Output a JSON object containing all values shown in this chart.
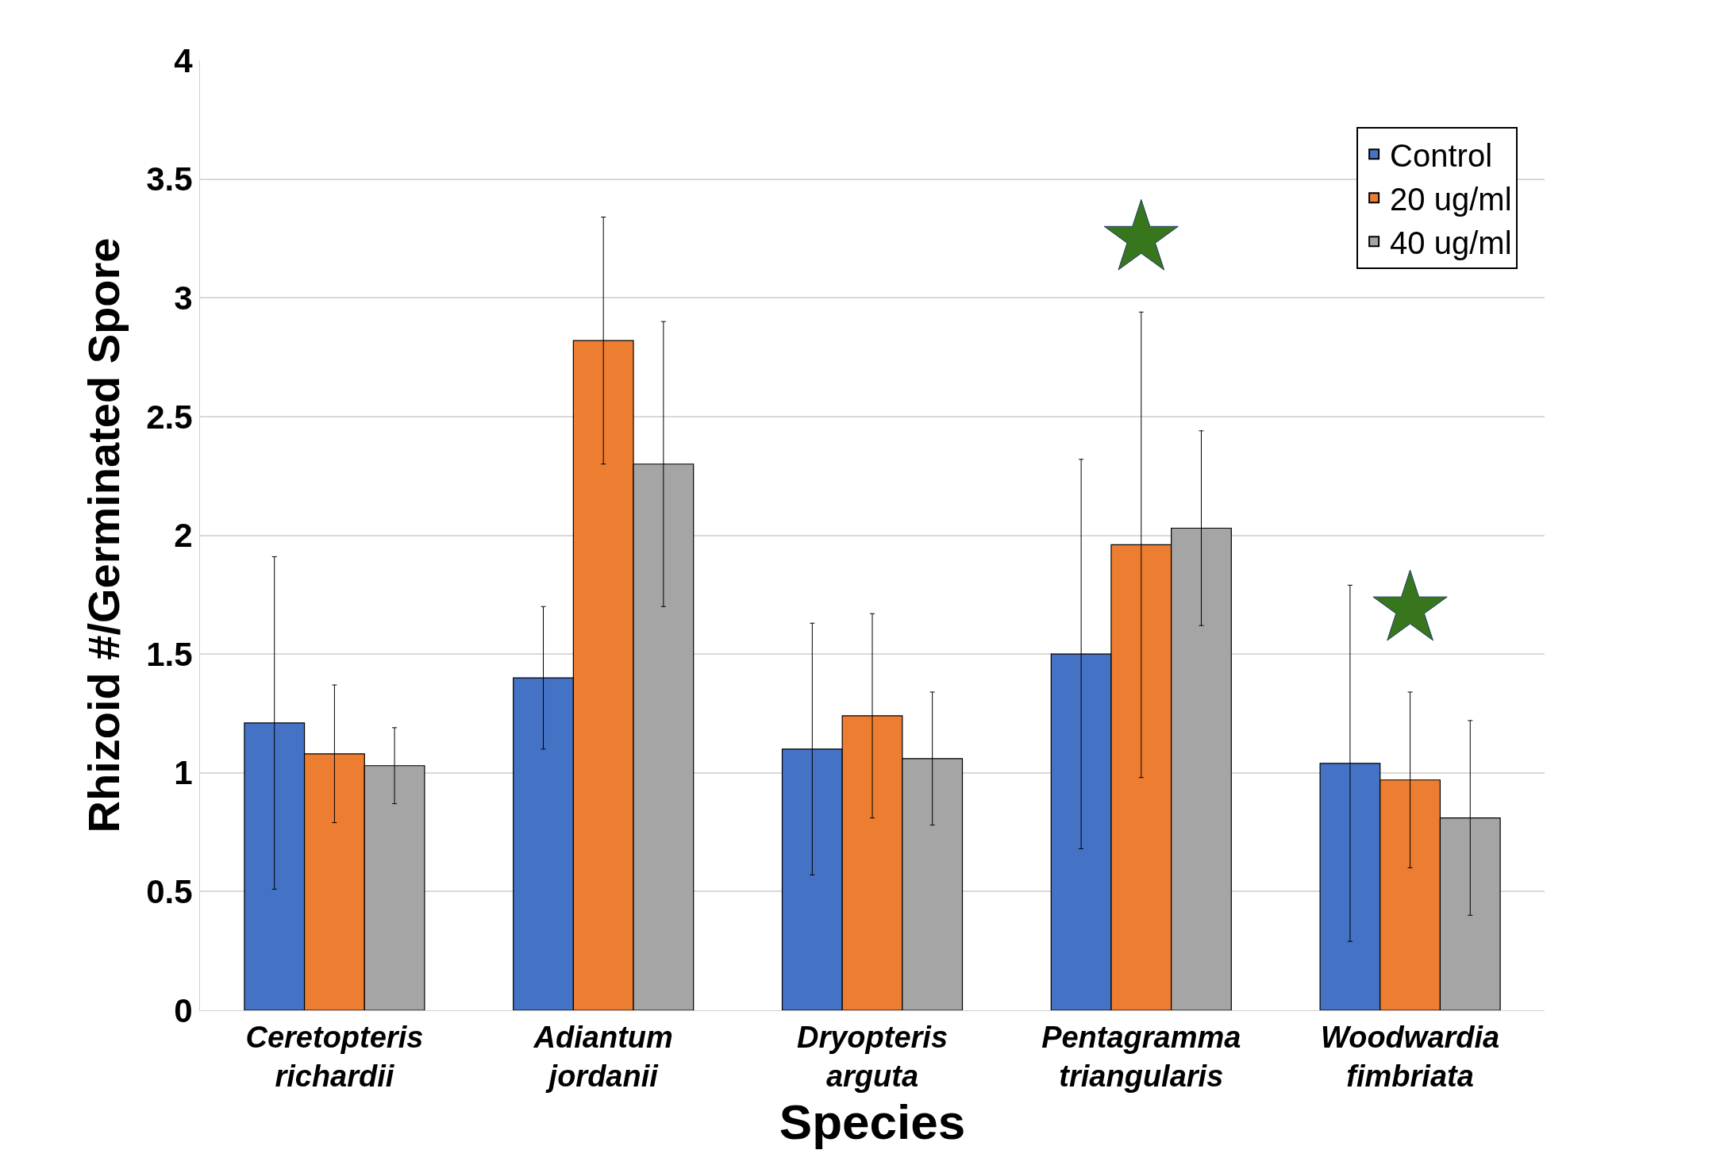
{
  "chart_data": {
    "type": "bar",
    "xlabel": "Species",
    "ylabel": "Rhizoid #/Germinated Spore",
    "categories": [
      "Ceretopteris\nrichardii",
      "Adiantum\njordanii",
      "Dryopteris\narguta",
      "Pentagramma\ntriangularis",
      "Woodwardia\nfimbriata"
    ],
    "series": [
      {
        "name": "Control",
        "color": "#4472c4",
        "values": [
          1.21,
          1.4,
          1.1,
          1.5,
          1.04
        ],
        "errors": [
          0.7,
          0.3,
          0.53,
          0.82,
          0.75
        ]
      },
      {
        "name": "20 ug/ml",
        "color": "#ed7d31",
        "values": [
          1.08,
          2.82,
          1.24,
          1.96,
          0.97
        ],
        "errors": [
          0.29,
          0.52,
          0.43,
          0.98,
          0.37
        ]
      },
      {
        "name": "40 ug/ml",
        "color": "#a5a5a5",
        "values": [
          1.03,
          2.3,
          1.06,
          2.03,
          0.81
        ],
        "errors": [
          0.16,
          0.6,
          0.28,
          0.41,
          0.41
        ]
      },
      {
        "type": "scatter",
        "marker": "star",
        "color": "#38761d",
        "values": [
          null,
          null,
          null,
          3.25,
          1.69
        ]
      }
    ],
    "ylim": [
      0,
      4
    ],
    "yticks": [
      0,
      0.5,
      1,
      1.5,
      2,
      2.5,
      3,
      3.5,
      4
    ],
    "grid": "y",
    "legend": "top right"
  }
}
